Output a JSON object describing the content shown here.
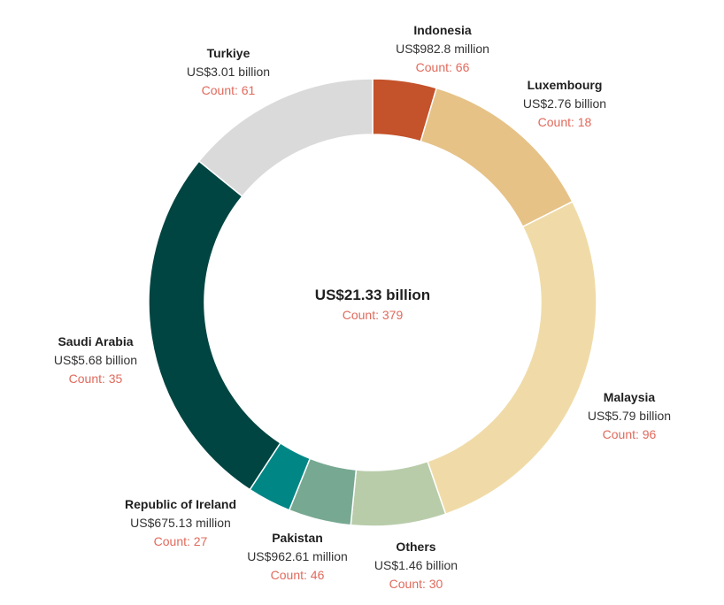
{
  "chart_data": {
    "type": "pie",
    "variant": "donut",
    "center": {
      "total": "US$21.33 billion",
      "count": "Count: 379"
    },
    "slices": [
      {
        "name": "Indonesia",
        "value": 0.9828,
        "value_label": "US$982.8 million",
        "count_label": "Count: 66",
        "color": "#c4522a"
      },
      {
        "name": "Luxembourg",
        "value": 2.76,
        "value_label": "US$2.76 billion",
        "count_label": "Count: 18",
        "color": "#e6c287"
      },
      {
        "name": "Malaysia",
        "value": 5.79,
        "value_label": "US$5.79 billion",
        "count_label": "Count: 96",
        "color": "#f0dba8"
      },
      {
        "name": "Others",
        "value": 1.46,
        "value_label": "US$1.46 billion",
        "count_label": "Count: 30",
        "color": "#b8ccaa"
      },
      {
        "name": "Pakistan",
        "value": 0.96261,
        "value_label": "US$962.61 million",
        "count_label": "Count: 46",
        "color": "#77a892"
      },
      {
        "name": "Republic of Ireland",
        "value": 0.67513,
        "value_label": "US$675.13 million",
        "count_label": "Count: 27",
        "color": "#008785"
      },
      {
        "name": "Saudi Arabia",
        "value": 5.68,
        "value_label": "US$5.68 billion",
        "count_label": "Count: 35",
        "color": "#004542"
      },
      {
        "name": "Turkiye",
        "value": 3.01,
        "value_label": "US$3.01 billion",
        "count_label": "Count: 61",
        "color": "#dadada"
      }
    ]
  }
}
